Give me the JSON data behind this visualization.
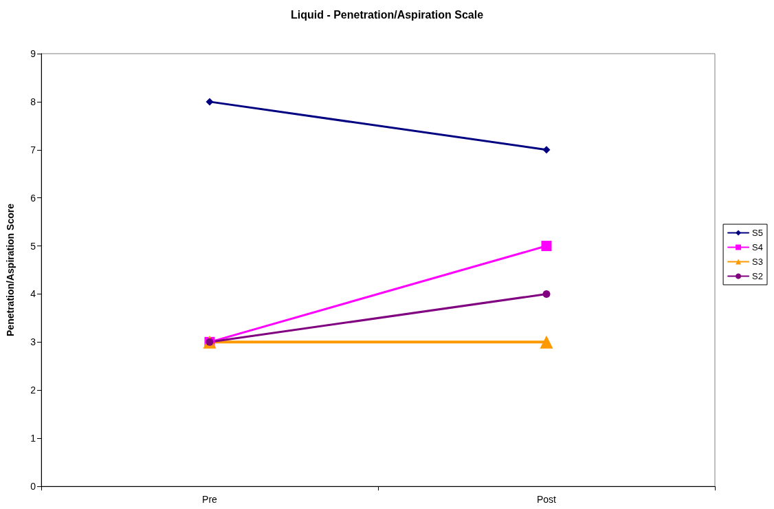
{
  "chart_data": {
    "type": "line",
    "title": "Liquid - Penetration/Aspiration Scale",
    "ylabel": "Penetration/Aspiration Score",
    "categories": [
      "Pre",
      "Post"
    ],
    "series": [
      {
        "name": "S5",
        "color": "#000080",
        "values": [
          8,
          7
        ],
        "marker": "diamond"
      },
      {
        "name": "S4",
        "color": "#ff00ff",
        "values": [
          3,
          5
        ],
        "marker": "square"
      },
      {
        "name": "S3",
        "color": "#ff9900",
        "values": [
          3,
          3
        ],
        "marker": "triangle"
      },
      {
        "name": "S2",
        "color": "#800080",
        "values": [
          3,
          4
        ],
        "marker": "circle"
      }
    ],
    "ylim": [
      0,
      9
    ],
    "yticks": [
      0,
      1,
      2,
      3,
      4,
      5,
      6,
      7,
      8,
      9
    ],
    "grid": false,
    "legend": "right",
    "line_style": "solid"
  }
}
